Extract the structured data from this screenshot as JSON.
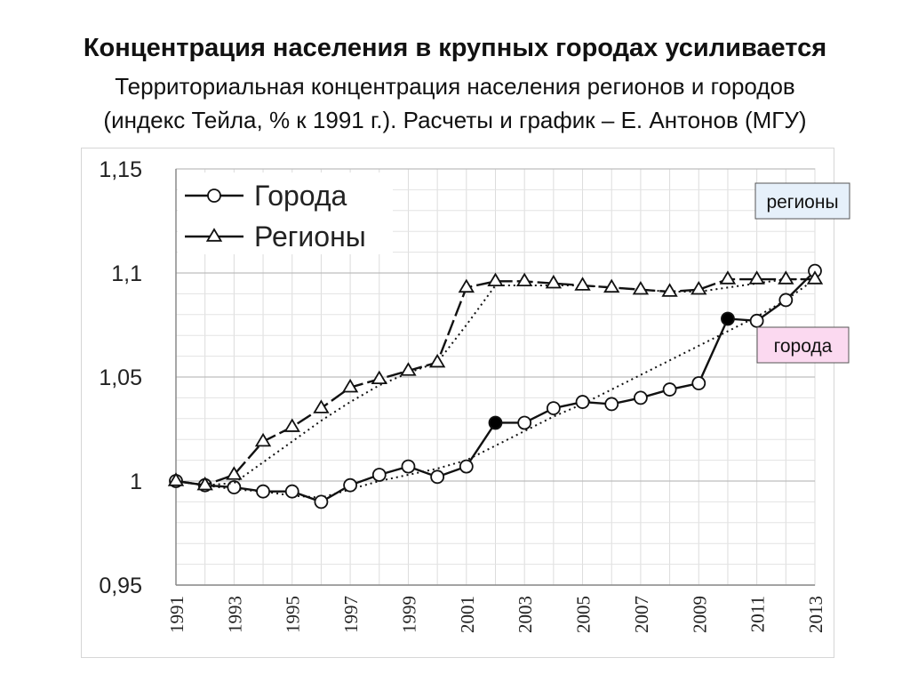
{
  "header": {
    "title": "Концентрация населения в крупных городах усиливается",
    "subtitle_line1": "Территориальная концентрация населения регионов и городов",
    "subtitle_line2": "(индекс Тейла, % к 1991 г.).  Расчеты и график – Е. Антонов (МГУ)"
  },
  "chart_data": {
    "type": "line",
    "x": [
      1991,
      1992,
      1993,
      1994,
      1995,
      1996,
      1997,
      1998,
      1999,
      2000,
      2001,
      2002,
      2003,
      2004,
      2005,
      2006,
      2007,
      2008,
      2009,
      2010,
      2011,
      2012,
      2013
    ],
    "x_tick_labels": [
      "1991",
      "1993",
      "1995",
      "1997",
      "1999",
      "2001",
      "2003",
      "2005",
      "2007",
      "2009",
      "2011",
      "2013"
    ],
    "y_tick_labels": [
      "1,15",
      "1,1",
      "1,05",
      "1",
      "0,95"
    ],
    "y_ticks": [
      1.15,
      1.1,
      1.05,
      1.0,
      0.95
    ],
    "ylim": [
      0.95,
      1.15
    ],
    "xlim": [
      1991,
      2013
    ],
    "grid": true,
    "legend_position": "top-left",
    "series": [
      {
        "name": "Города",
        "marker": "circle",
        "color": "#111111",
        "filled_marker_years": [
          2002,
          2010
        ],
        "values": [
          1.0,
          0.998,
          0.997,
          0.995,
          0.995,
          0.99,
          0.998,
          1.003,
          1.007,
          1.002,
          1.007,
          1.028,
          1.028,
          1.035,
          1.038,
          1.037,
          1.04,
          1.044,
          1.047,
          1.078,
          1.077,
          1.087,
          1.101
        ],
        "trend": [
          1.0,
          0.998,
          0.996,
          0.995,
          0.993,
          0.992,
          0.996,
          1.0,
          1.003,
          1.006,
          1.01,
          1.017,
          1.024,
          1.031,
          1.037,
          1.044,
          1.051,
          1.058,
          1.065,
          1.072,
          1.079,
          1.087,
          1.097
        ]
      },
      {
        "name": "Регионы",
        "marker": "triangle",
        "color": "#111111",
        "values": [
          1.0,
          0.998,
          1.003,
          1.019,
          1.026,
          1.035,
          1.045,
          1.049,
          1.053,
          1.057,
          1.093,
          1.096,
          1.096,
          1.095,
          1.094,
          1.093,
          1.092,
          1.091,
          1.092,
          1.097,
          1.097,
          1.097,
          1.097
        ],
        "trend": [
          1.0,
          0.998,
          0.999,
          1.009,
          1.019,
          1.029,
          1.038,
          1.046,
          1.052,
          1.057,
          1.075,
          1.094,
          1.094,
          1.094,
          1.094,
          1.093,
          1.092,
          1.091,
          1.091,
          1.093,
          1.095,
          1.097,
          1.097
        ]
      }
    ],
    "annotations": [
      {
        "text": "регионы",
        "background": "#e6f0fa"
      },
      {
        "text": "города",
        "background": "#fbd9f0"
      }
    ]
  }
}
